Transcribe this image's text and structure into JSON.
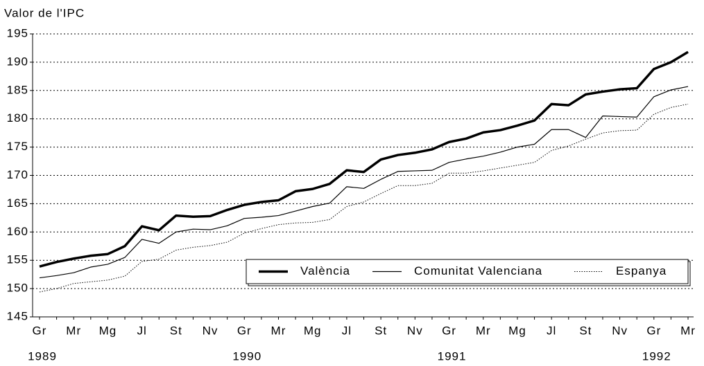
{
  "chart_data": {
    "type": "line",
    "y_axis_label": "Valor de l'IPC",
    "categories": [
      "Gr",
      null,
      "Mr",
      null,
      "Mg",
      null,
      "Jl",
      null,
      "St",
      null,
      "Nv",
      null,
      "Gr",
      null,
      "Mr",
      null,
      "Mg",
      null,
      "Jl",
      null,
      "St",
      null,
      "Nv",
      null,
      "Gr",
      null,
      "Mr",
      null,
      "Mg",
      null,
      "Jl",
      null,
      "St",
      null,
      "Nv",
      null,
      "Gr",
      null,
      "Mr"
    ],
    "category_years": [
      "1989",
      null,
      null,
      null,
      null,
      null,
      null,
      null,
      null,
      null,
      null,
      null,
      "1990",
      null,
      null,
      null,
      null,
      null,
      null,
      null,
      null,
      null,
      null,
      null,
      "1991",
      null,
      null,
      null,
      null,
      null,
      null,
      null,
      null,
      null,
      null,
      null,
      "1992",
      null,
      null
    ],
    "series": [
      {
        "name": "València",
        "color": "#000000",
        "line_width": 3.5,
        "dotted": false,
        "values": [
          153.9,
          154.7,
          155.3,
          155.8,
          156.1,
          157.5,
          161.0,
          160.3,
          162.9,
          162.7,
          162.8,
          163.9,
          164.8,
          165.3,
          165.6,
          167.2,
          167.6,
          168.5,
          170.9,
          170.6,
          172.8,
          173.6,
          174.0,
          174.6,
          175.9,
          176.5,
          177.6,
          178.0,
          178.8,
          179.7,
          182.6,
          182.4,
          184.3,
          184.8,
          185.2,
          185.4,
          188.8,
          190.0,
          191.8
        ]
      },
      {
        "name": "Comunitat Valenciana",
        "color": "#000000",
        "line_width": 1.2,
        "dotted": false,
        "values": [
          151.9,
          152.3,
          152.8,
          153.8,
          154.3,
          155.5,
          158.7,
          158.0,
          160.0,
          160.5,
          160.4,
          161.1,
          162.4,
          162.6,
          162.9,
          163.7,
          164.5,
          165.1,
          168.0,
          167.7,
          169.3,
          170.7,
          170.8,
          170.9,
          172.3,
          172.9,
          173.4,
          174.1,
          175.0,
          175.5,
          178.1,
          178.1,
          176.7,
          180.5,
          180.4,
          180.3,
          183.9,
          185.1,
          185.7
        ]
      },
      {
        "name": "Espanya",
        "color": "#000000",
        "line_width": 1,
        "dotted": true,
        "values": [
          149.4,
          150.0,
          150.9,
          151.2,
          151.5,
          152.2,
          154.8,
          155.2,
          156.8,
          157.3,
          157.6,
          158.2,
          159.8,
          160.6,
          161.3,
          161.6,
          161.7,
          162.2,
          164.5,
          165.3,
          166.8,
          168.2,
          168.2,
          168.6,
          170.4,
          170.4,
          170.8,
          171.3,
          171.8,
          172.3,
          174.4,
          175.2,
          176.4,
          177.5,
          177.9,
          178.0,
          180.8,
          182.0,
          182.6
        ]
      }
    ],
    "ylim": [
      145,
      195
    ],
    "yticks": [
      145,
      150,
      155,
      160,
      165,
      170,
      175,
      180,
      185,
      190,
      195
    ],
    "grid": true,
    "legend": "bottom-right"
  }
}
